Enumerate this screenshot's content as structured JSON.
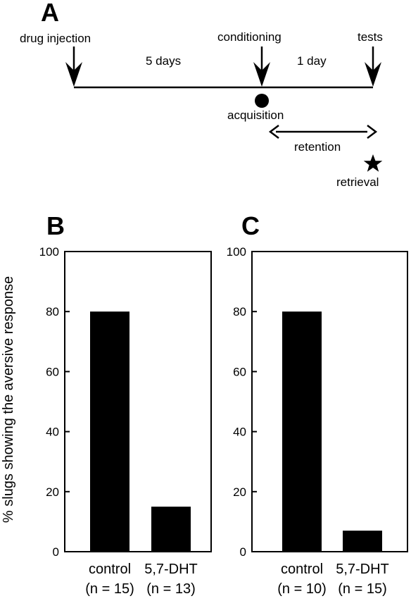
{
  "panels": {
    "a": "A",
    "b": "B",
    "c": "C"
  },
  "timeline": {
    "drug_injection": "drug injection",
    "conditioning": "conditioning",
    "tests": "tests",
    "interval1": "5 days",
    "interval2": "1 day",
    "acquisition": "acquisition",
    "retention": "retention",
    "retrieval": "retrieval"
  },
  "colors": {
    "bar": "#000000",
    "axis": "#000000"
  },
  "chart_data": [
    {
      "type": "bar",
      "panel": "B",
      "categories": [
        "control",
        "5,7-DHT"
      ],
      "category_n": [
        "(n = 15)",
        "(n = 13)"
      ],
      "values": [
        80,
        15
      ],
      "ylabel": "% slugs showing the aversive response",
      "ylim": [
        0,
        100
      ],
      "yticks": [
        0,
        20,
        40,
        60,
        80,
        100
      ],
      "grid": false
    },
    {
      "type": "bar",
      "panel": "C",
      "categories": [
        "control",
        "5,7-DHT"
      ],
      "category_n": [
        "(n = 10)",
        "(n = 15)"
      ],
      "values": [
        80,
        7
      ],
      "ylabel": "",
      "ylim": [
        0,
        100
      ],
      "yticks": [
        0,
        20,
        40,
        60,
        80,
        100
      ],
      "grid": false
    }
  ]
}
